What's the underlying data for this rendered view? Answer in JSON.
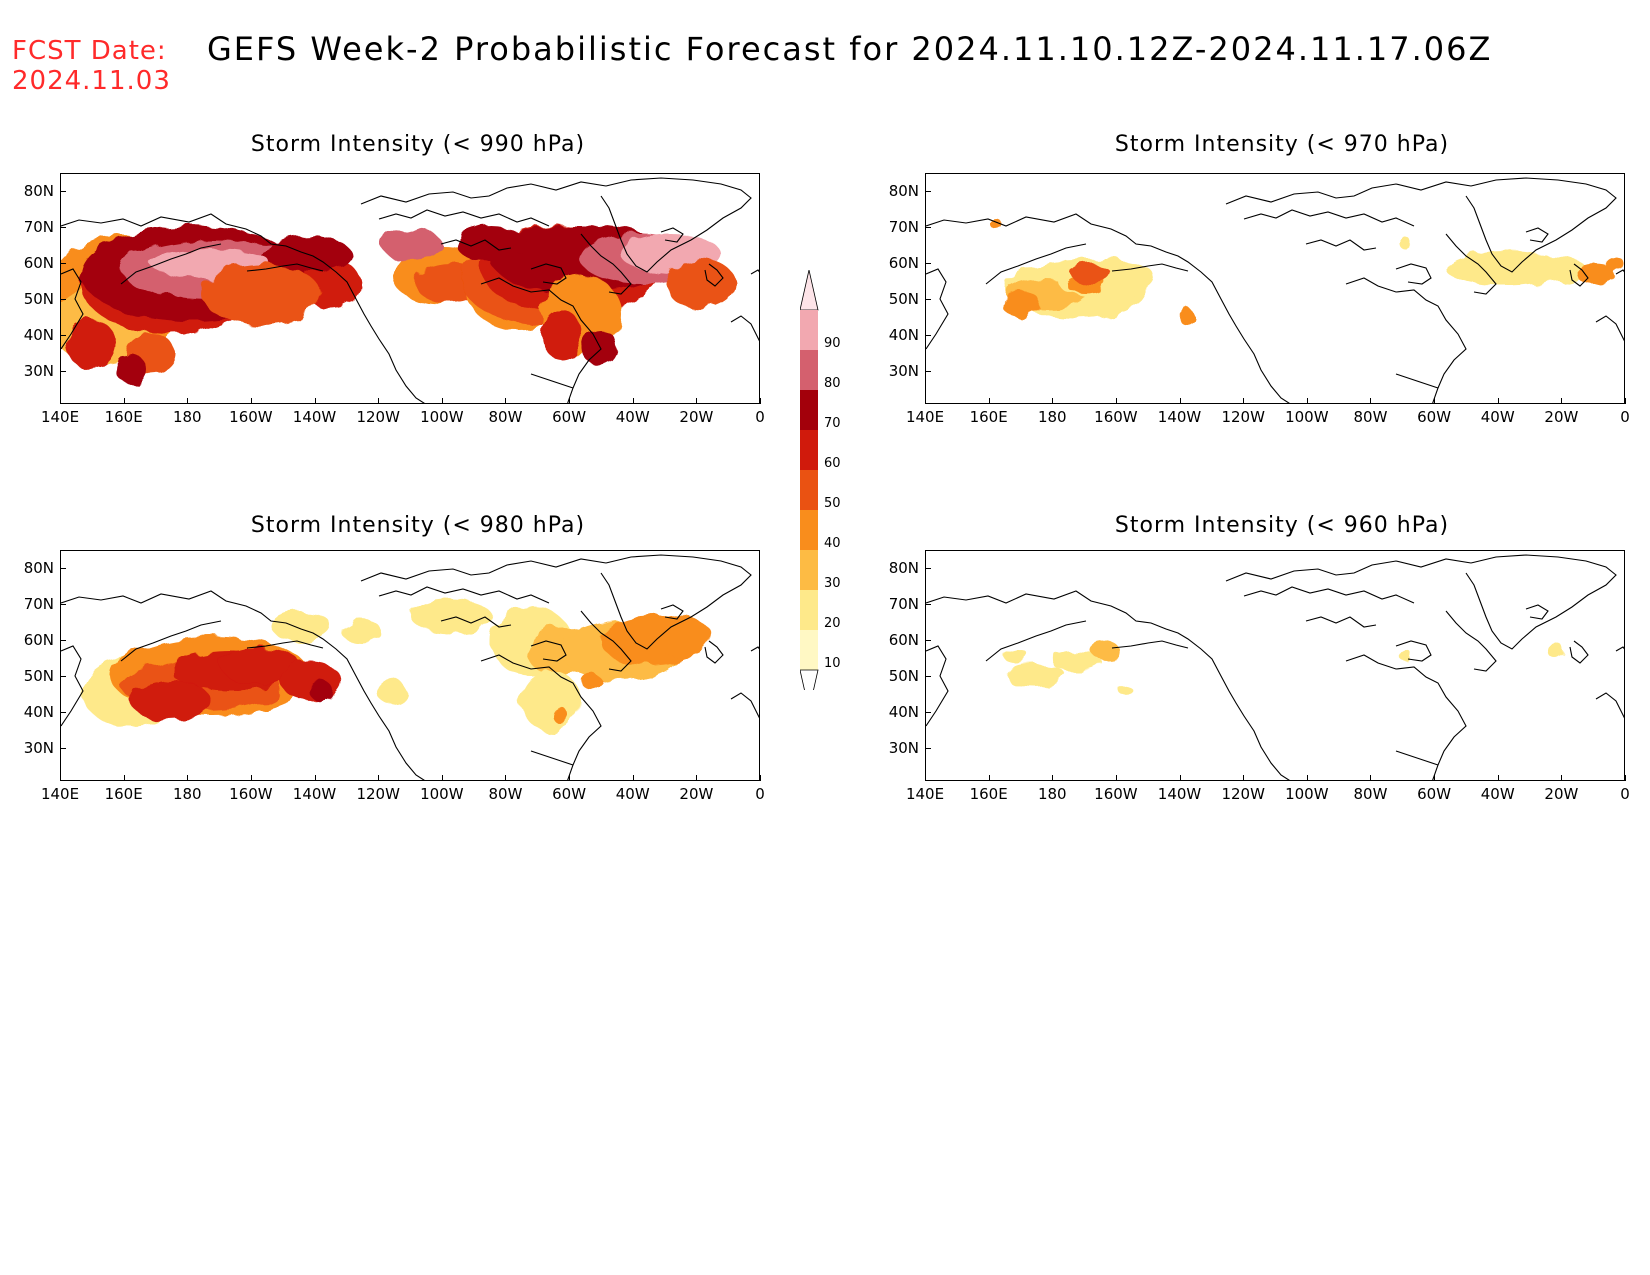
{
  "header": {
    "fcst_label": "FCST Date:",
    "fcst_date": "2024.11.03",
    "title": "GEFS Week-2 Probabilistic Forecast for 2024.11.10.12Z-2024.11.17.06Z"
  },
  "panels": [
    {
      "id": "p990",
      "title": "Storm Intensity (< 990 hPa)"
    },
    {
      "id": "p970",
      "title": "Storm Intensity (< 970 hPa)"
    },
    {
      "id": "p980",
      "title": "Storm Intensity (< 980 hPa)"
    },
    {
      "id": "p960",
      "title": "Storm Intensity (< 960 hPa)"
    }
  ],
  "axes": {
    "lat_labels": [
      "80N",
      "70N",
      "60N",
      "50N",
      "40N",
      "30N"
    ],
    "lon_labels": [
      "140E",
      "160E",
      "180",
      "160W",
      "140W",
      "120W",
      "100W",
      "80W",
      "60W",
      "40W",
      "20W",
      "0"
    ]
  },
  "colorbar": {
    "levels": [
      "10",
      "20",
      "30",
      "40",
      "50",
      "60",
      "70",
      "80",
      "90"
    ],
    "colors": [
      "#fff8c4",
      "#fee98a",
      "#fdbb44",
      "#f98d1c",
      "#ea5212",
      "#d01a0c",
      "#a3000b",
      "#d4606e",
      "#f2a8b0",
      "#fde4e8"
    ]
  },
  "colors": {
    "fcst_text": "#ff2a2a",
    "coastline": "#000000"
  }
}
